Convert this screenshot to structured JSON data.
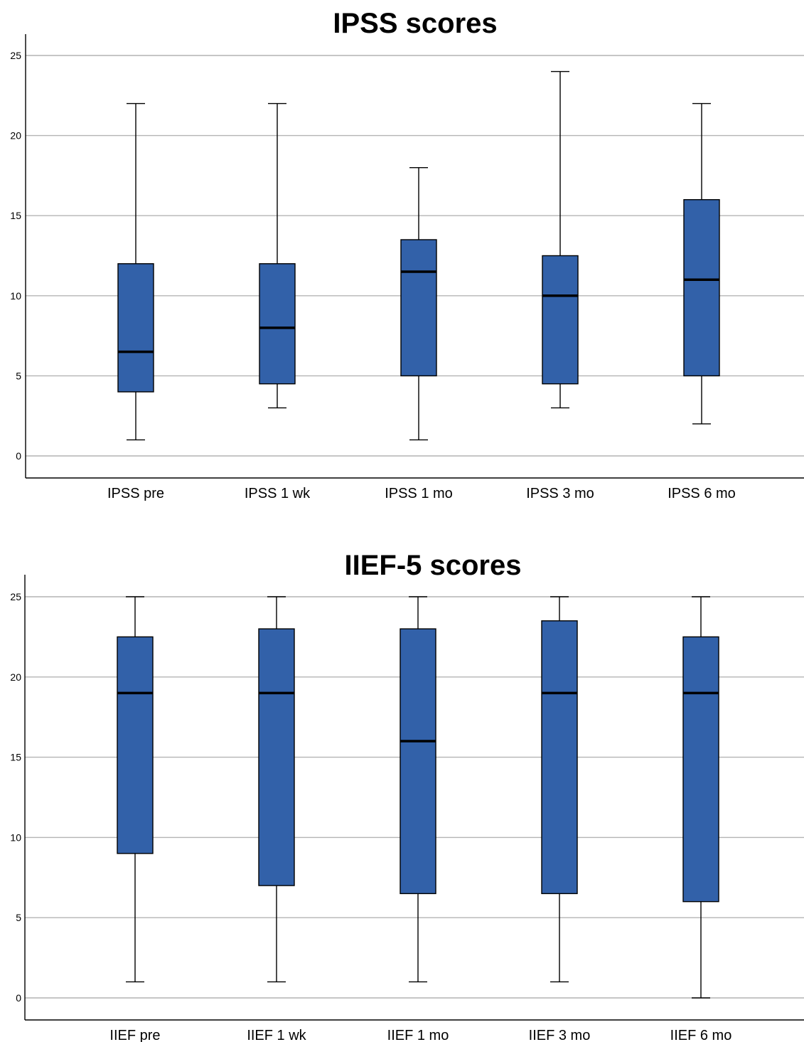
{
  "chart_data": [
    {
      "type": "boxplot",
      "title": "IPSS scores",
      "xlabel": "",
      "ylabel": "",
      "ylim": [
        0,
        25
      ],
      "yticks": [
        0,
        5,
        10,
        15,
        20,
        25
      ],
      "grid": true,
      "box_color": "#3261a9",
      "categories": [
        "IPSS pre",
        "IPSS 1 wk",
        "IPSS 1 mo",
        "IPSS 3 mo",
        "IPSS 6 mo"
      ],
      "boxes": [
        {
          "min": 1,
          "q1": 4,
          "median": 6.5,
          "q3": 12,
          "max": 22
        },
        {
          "min": 3,
          "q1": 4.5,
          "median": 8,
          "q3": 12,
          "max": 22
        },
        {
          "min": 1,
          "q1": 5,
          "median": 11.5,
          "q3": 13.5,
          "max": 18
        },
        {
          "min": 3,
          "q1": 4.5,
          "median": 10,
          "q3": 12.5,
          "max": 24
        },
        {
          "min": 2,
          "q1": 5,
          "median": 11,
          "q3": 16,
          "max": 22
        }
      ]
    },
    {
      "type": "boxplot",
      "title": "IIEF-5 scores",
      "xlabel": "",
      "ylabel": "",
      "ylim": [
        0,
        25
      ],
      "yticks": [
        0,
        5,
        10,
        15,
        20,
        25
      ],
      "grid": true,
      "box_color": "#3261a9",
      "categories": [
        "IIEF pre",
        "IIEF 1 wk",
        "IIEF 1 mo",
        "IIEF 3 mo",
        "IIEF 6 mo"
      ],
      "boxes": [
        {
          "min": 1,
          "q1": 9,
          "median": 19,
          "q3": 22.5,
          "max": 25
        },
        {
          "min": 1,
          "q1": 7,
          "median": 19,
          "q3": 23,
          "max": 25
        },
        {
          "min": 1,
          "q1": 6.5,
          "median": 16,
          "q3": 23,
          "max": 25
        },
        {
          "min": 1,
          "q1": 6.5,
          "median": 19,
          "q3": 23.5,
          "max": 25
        },
        {
          "min": 0,
          "q1": 6,
          "median": 19,
          "q3": 22.5,
          "max": 25
        }
      ]
    }
  ]
}
